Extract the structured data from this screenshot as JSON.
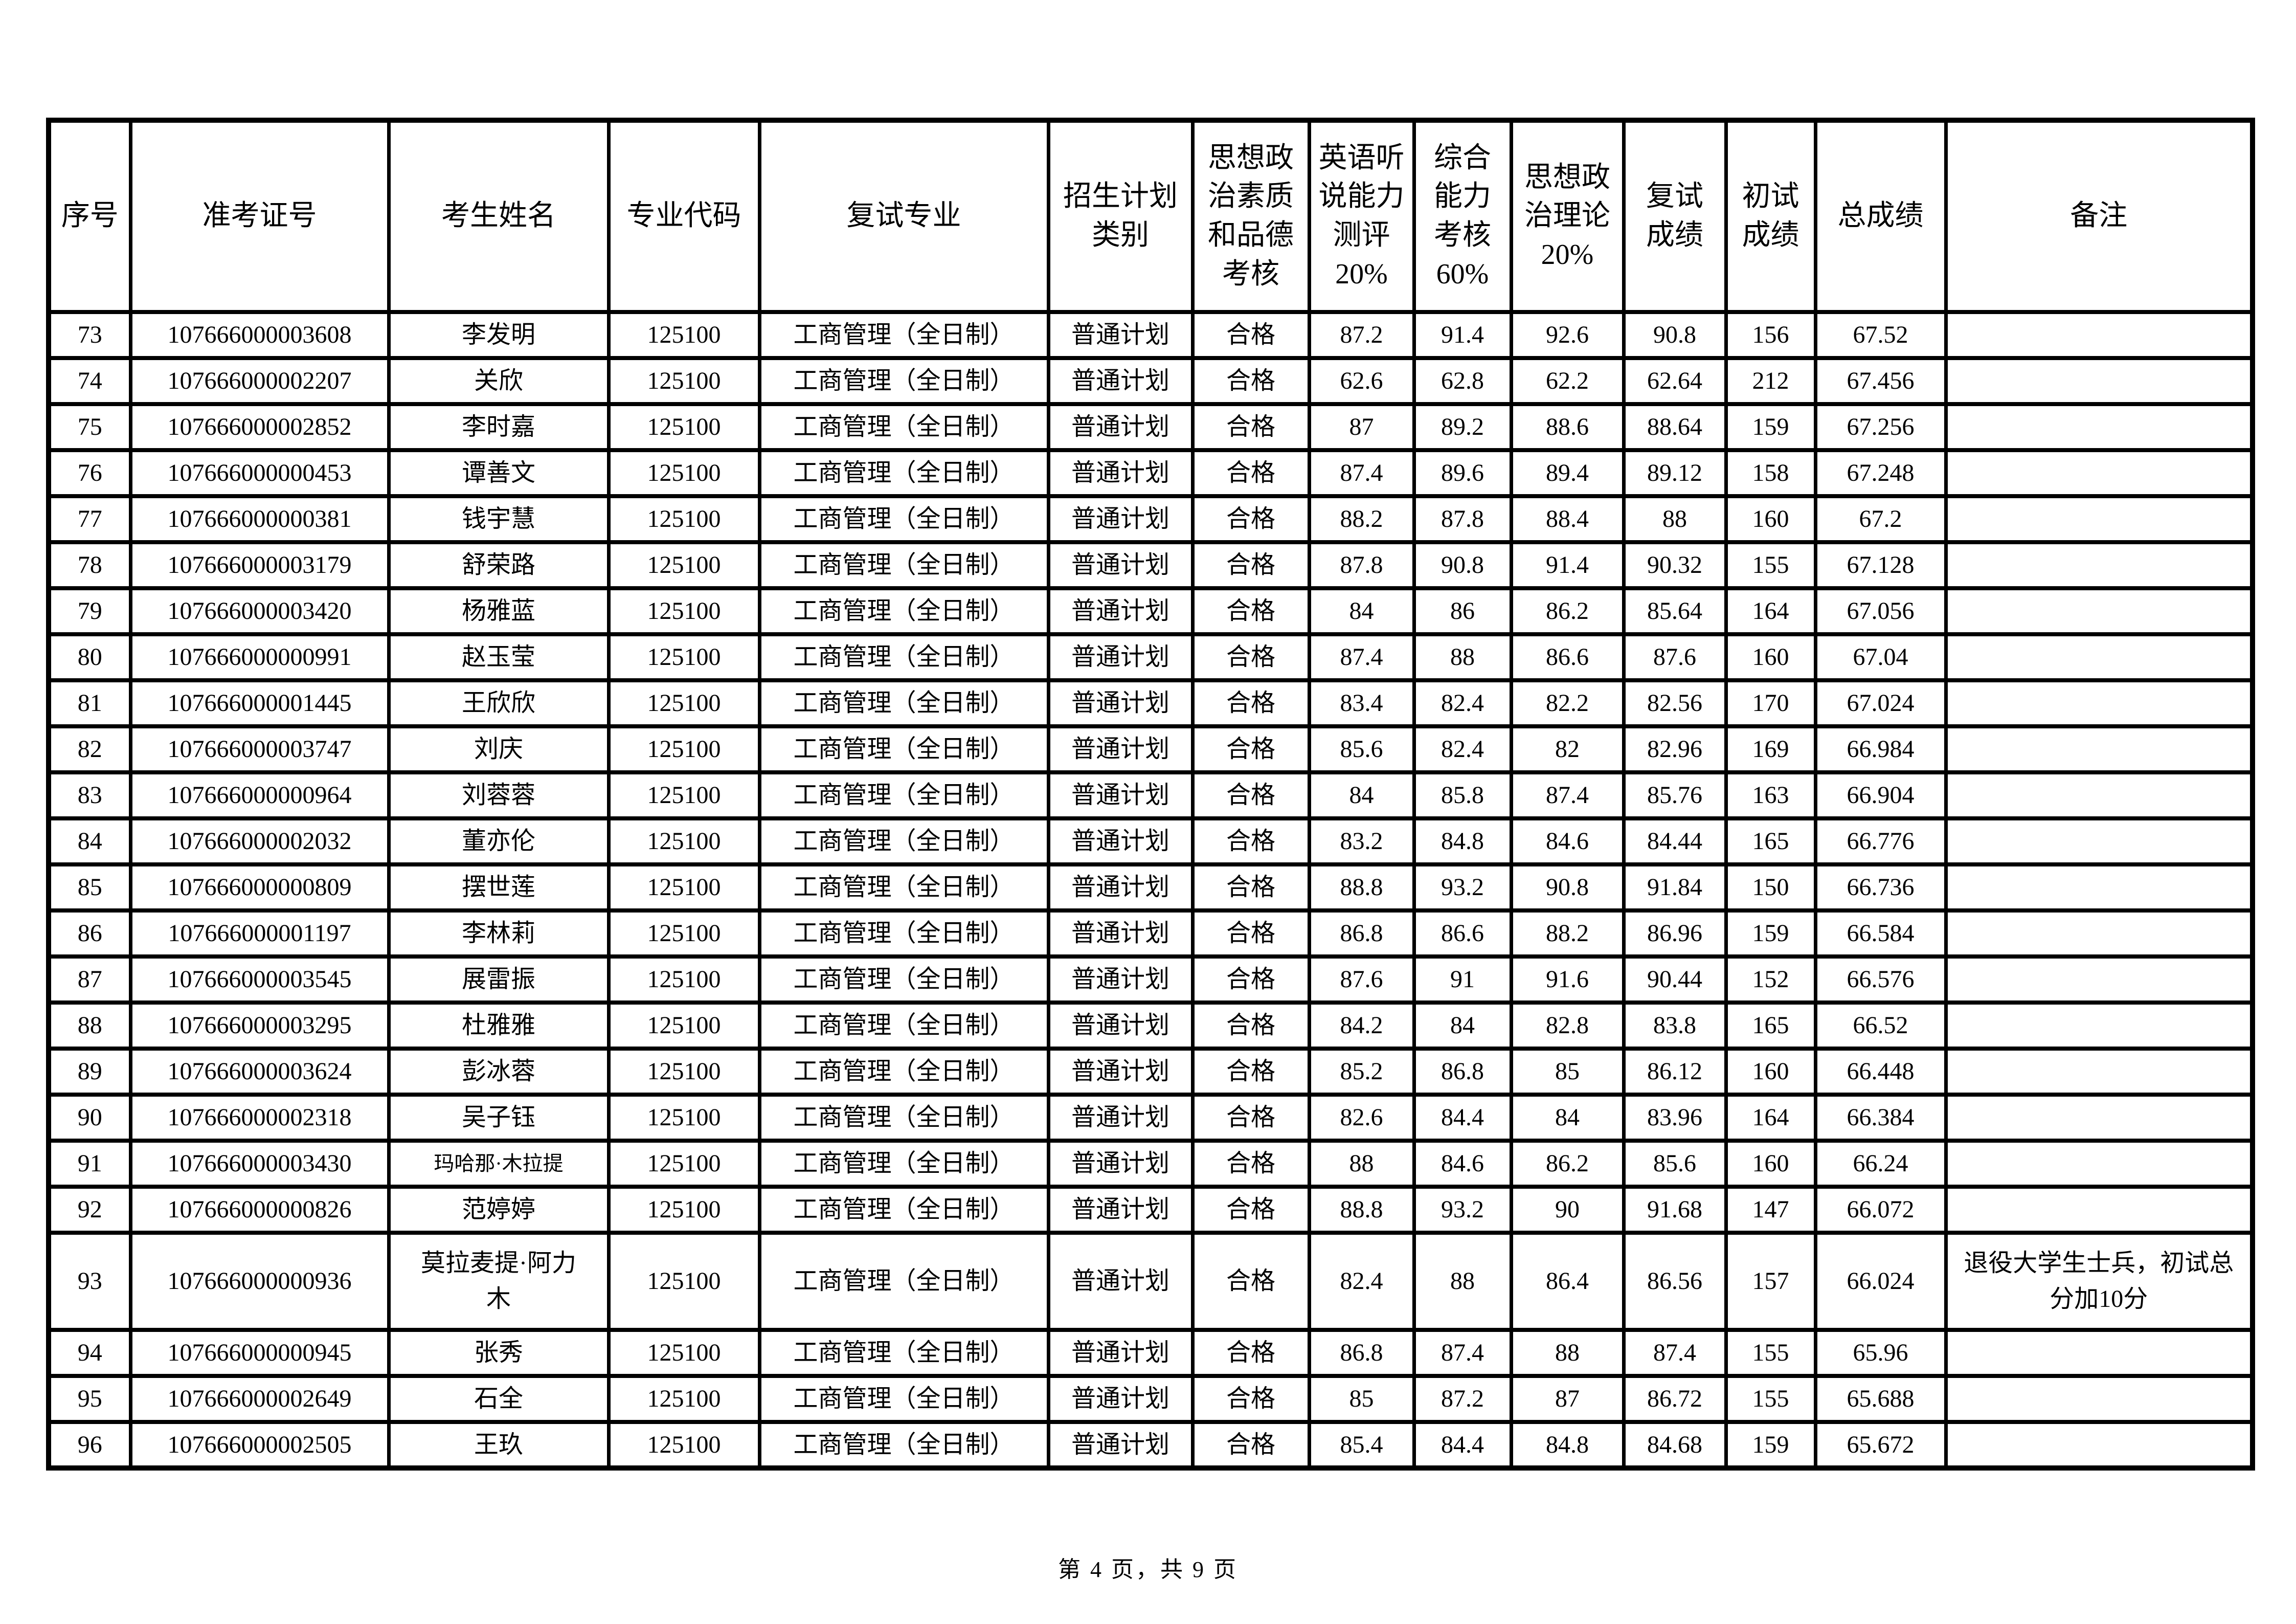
{
  "document": {
    "footer_page_info": "第 4 页，共 9 页"
  },
  "table": {
    "headers": [
      "序号",
      "准考证号",
      "考生姓名",
      "专业代码",
      "复试专业",
      "招生计划\n类别",
      "思想政\n治素质\n和品德\n考核",
      "英语听\n说能力\n测评\n20%",
      "综合\n能力\n考核\n60%",
      "思想政\n治理论\n20%",
      "复试\n成绩",
      "初试\n成绩",
      "总成绩",
      "备注"
    ],
    "rows": [
      {
        "index": "73",
        "exam_id": "107666000003608",
        "name": "李发明",
        "major_code": "125100",
        "major": "工商管理（全日制）",
        "plan_type": "普通计划",
        "moral_check": "合格",
        "english_20": "87.2",
        "comprehensive_60": "91.4",
        "politics_20": "92.6",
        "retest_score": "90.8",
        "initial_score": "156",
        "total_score": "67.52",
        "remark": ""
      },
      {
        "index": "74",
        "exam_id": "107666000002207",
        "name": "关欣",
        "major_code": "125100",
        "major": "工商管理（全日制）",
        "plan_type": "普通计划",
        "moral_check": "合格",
        "english_20": "62.6",
        "comprehensive_60": "62.8",
        "politics_20": "62.2",
        "retest_score": "62.64",
        "initial_score": "212",
        "total_score": "67.456",
        "remark": ""
      },
      {
        "index": "75",
        "exam_id": "107666000002852",
        "name": "李时嘉",
        "major_code": "125100",
        "major": "工商管理（全日制）",
        "plan_type": "普通计划",
        "moral_check": "合格",
        "english_20": "87",
        "comprehensive_60": "89.2",
        "politics_20": "88.6",
        "retest_score": "88.64",
        "initial_score": "159",
        "total_score": "67.256",
        "remark": ""
      },
      {
        "index": "76",
        "exam_id": "107666000000453",
        "name": "谭善文",
        "major_code": "125100",
        "major": "工商管理（全日制）",
        "plan_type": "普通计划",
        "moral_check": "合格",
        "english_20": "87.4",
        "comprehensive_60": "89.6",
        "politics_20": "89.4",
        "retest_score": "89.12",
        "initial_score": "158",
        "total_score": "67.248",
        "remark": ""
      },
      {
        "index": "77",
        "exam_id": "107666000000381",
        "name": "钱宇慧",
        "major_code": "125100",
        "major": "工商管理（全日制）",
        "plan_type": "普通计划",
        "moral_check": "合格",
        "english_20": "88.2",
        "comprehensive_60": "87.8",
        "politics_20": "88.4",
        "retest_score": "88",
        "initial_score": "160",
        "total_score": "67.2",
        "remark": ""
      },
      {
        "index": "78",
        "exam_id": "107666000003179",
        "name": "舒荣路",
        "major_code": "125100",
        "major": "工商管理（全日制）",
        "plan_type": "普通计划",
        "moral_check": "合格",
        "english_20": "87.8",
        "comprehensive_60": "90.8",
        "politics_20": "91.4",
        "retest_score": "90.32",
        "initial_score": "155",
        "total_score": "67.128",
        "remark": ""
      },
      {
        "index": "79",
        "exam_id": "107666000003420",
        "name": "杨雅蓝",
        "major_code": "125100",
        "major": "工商管理（全日制）",
        "plan_type": "普通计划",
        "moral_check": "合格",
        "english_20": "84",
        "comprehensive_60": "86",
        "politics_20": "86.2",
        "retest_score": "85.64",
        "initial_score": "164",
        "total_score": "67.056",
        "remark": ""
      },
      {
        "index": "80",
        "exam_id": "107666000000991",
        "name": "赵玉莹",
        "major_code": "125100",
        "major": "工商管理（全日制）",
        "plan_type": "普通计划",
        "moral_check": "合格",
        "english_20": "87.4",
        "comprehensive_60": "88",
        "politics_20": "86.6",
        "retest_score": "87.6",
        "initial_score": "160",
        "total_score": "67.04",
        "remark": ""
      },
      {
        "index": "81",
        "exam_id": "107666000001445",
        "name": "王欣欣",
        "major_code": "125100",
        "major": "工商管理（全日制）",
        "plan_type": "普通计划",
        "moral_check": "合格",
        "english_20": "83.4",
        "comprehensive_60": "82.4",
        "politics_20": "82.2",
        "retest_score": "82.56",
        "initial_score": "170",
        "total_score": "67.024",
        "remark": ""
      },
      {
        "index": "82",
        "exam_id": "107666000003747",
        "name": "刘庆",
        "major_code": "125100",
        "major": "工商管理（全日制）",
        "plan_type": "普通计划",
        "moral_check": "合格",
        "english_20": "85.6",
        "comprehensive_60": "82.4",
        "politics_20": "82",
        "retest_score": "82.96",
        "initial_score": "169",
        "total_score": "66.984",
        "remark": ""
      },
      {
        "index": "83",
        "exam_id": "107666000000964",
        "name": "刘蓉蓉",
        "major_code": "125100",
        "major": "工商管理（全日制）",
        "plan_type": "普通计划",
        "moral_check": "合格",
        "english_20": "84",
        "comprehensive_60": "85.8",
        "politics_20": "87.4",
        "retest_score": "85.76",
        "initial_score": "163",
        "total_score": "66.904",
        "remark": ""
      },
      {
        "index": "84",
        "exam_id": "107666000002032",
        "name": "董亦伦",
        "major_code": "125100",
        "major": "工商管理（全日制）",
        "plan_type": "普通计划",
        "moral_check": "合格",
        "english_20": "83.2",
        "comprehensive_60": "84.8",
        "politics_20": "84.6",
        "retest_score": "84.44",
        "initial_score": "165",
        "total_score": "66.776",
        "remark": ""
      },
      {
        "index": "85",
        "exam_id": "107666000000809",
        "name": "摆世莲",
        "major_code": "125100",
        "major": "工商管理（全日制）",
        "plan_type": "普通计划",
        "moral_check": "合格",
        "english_20": "88.8",
        "comprehensive_60": "93.2",
        "politics_20": "90.8",
        "retest_score": "91.84",
        "initial_score": "150",
        "total_score": "66.736",
        "remark": ""
      },
      {
        "index": "86",
        "exam_id": "107666000001197",
        "name": "李林莉",
        "major_code": "125100",
        "major": "工商管理（全日制）",
        "plan_type": "普通计划",
        "moral_check": "合格",
        "english_20": "86.8",
        "comprehensive_60": "86.6",
        "politics_20": "88.2",
        "retest_score": "86.96",
        "initial_score": "159",
        "total_score": "66.584",
        "remark": ""
      },
      {
        "index": "87",
        "exam_id": "107666000003545",
        "name": "展雷振",
        "major_code": "125100",
        "major": "工商管理（全日制）",
        "plan_type": "普通计划",
        "moral_check": "合格",
        "english_20": "87.6",
        "comprehensive_60": "91",
        "politics_20": "91.6",
        "retest_score": "90.44",
        "initial_score": "152",
        "total_score": "66.576",
        "remark": ""
      },
      {
        "index": "88",
        "exam_id": "107666000003295",
        "name": "杜雅雅",
        "major_code": "125100",
        "major": "工商管理（全日制）",
        "plan_type": "普通计划",
        "moral_check": "合格",
        "english_20": "84.2",
        "comprehensive_60": "84",
        "politics_20": "82.8",
        "retest_score": "83.8",
        "initial_score": "165",
        "total_score": "66.52",
        "remark": ""
      },
      {
        "index": "89",
        "exam_id": "107666000003624",
        "name": "彭冰蓉",
        "major_code": "125100",
        "major": "工商管理（全日制）",
        "plan_type": "普通计划",
        "moral_check": "合格",
        "english_20": "85.2",
        "comprehensive_60": "86.8",
        "politics_20": "85",
        "retest_score": "86.12",
        "initial_score": "160",
        "total_score": "66.448",
        "remark": ""
      },
      {
        "index": "90",
        "exam_id": "107666000002318",
        "name": "吴子钰",
        "major_code": "125100",
        "major": "工商管理（全日制）",
        "plan_type": "普通计划",
        "moral_check": "合格",
        "english_20": "82.6",
        "comprehensive_60": "84.4",
        "politics_20": "84",
        "retest_score": "83.96",
        "initial_score": "164",
        "total_score": "66.384",
        "remark": ""
      },
      {
        "index": "91",
        "exam_id": "107666000003430",
        "name": "玛哈那·木拉提",
        "name_fit": "shrink",
        "major_code": "125100",
        "major": "工商管理（全日制）",
        "plan_type": "普通计划",
        "moral_check": "合格",
        "english_20": "88",
        "comprehensive_60": "84.6",
        "politics_20": "86.2",
        "retest_score": "85.6",
        "initial_score": "160",
        "total_score": "66.24",
        "remark": ""
      },
      {
        "index": "92",
        "exam_id": "107666000000826",
        "name": "范婷婷",
        "major_code": "125100",
        "major": "工商管理（全日制）",
        "plan_type": "普通计划",
        "moral_check": "合格",
        "english_20": "88.8",
        "comprehensive_60": "93.2",
        "politics_20": "90",
        "retest_score": "91.68",
        "initial_score": "147",
        "total_score": "66.072",
        "remark": ""
      },
      {
        "index": "93",
        "exam_id": "107666000000936",
        "name": "莫拉麦提·阿力木",
        "major_code": "125100",
        "major": "工商管理（全日制）",
        "plan_type": "普通计划",
        "moral_check": "合格",
        "english_20": "82.4",
        "comprehensive_60": "88",
        "politics_20": "86.4",
        "retest_score": "86.56",
        "initial_score": "157",
        "total_score": "66.024",
        "remark": "退役大学生士兵，初试总分加10分"
      },
      {
        "index": "94",
        "exam_id": "107666000000945",
        "name": "张秀",
        "major_code": "125100",
        "major": "工商管理（全日制）",
        "plan_type": "普通计划",
        "moral_check": "合格",
        "english_20": "86.8",
        "comprehensive_60": "87.4",
        "politics_20": "88",
        "retest_score": "87.4",
        "initial_score": "155",
        "total_score": "65.96",
        "remark": ""
      },
      {
        "index": "95",
        "exam_id": "107666000002649",
        "name": "石全",
        "major_code": "125100",
        "major": "工商管理（全日制）",
        "plan_type": "普通计划",
        "moral_check": "合格",
        "english_20": "85",
        "comprehensive_60": "87.2",
        "politics_20": "87",
        "retest_score": "86.72",
        "initial_score": "155",
        "total_score": "65.688",
        "remark": ""
      },
      {
        "index": "96",
        "exam_id": "107666000002505",
        "name": "王玖",
        "major_code": "125100",
        "major": "工商管理（全日制）",
        "plan_type": "普通计划",
        "moral_check": "合格",
        "english_20": "85.4",
        "comprehensive_60": "84.4",
        "politics_20": "84.8",
        "retest_score": "84.68",
        "initial_score": "159",
        "total_score": "65.672",
        "remark": ""
      }
    ]
  }
}
